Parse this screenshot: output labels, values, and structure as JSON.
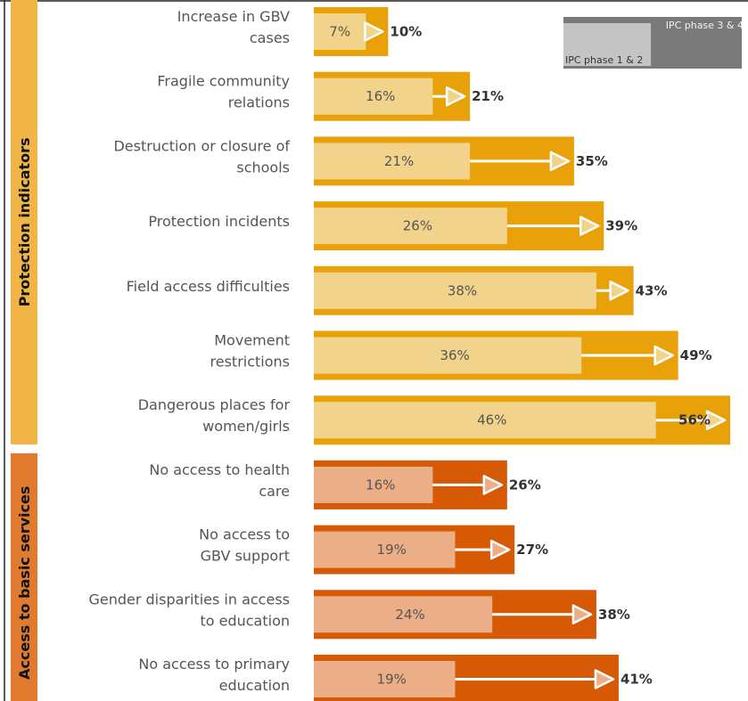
{
  "chart_data": {
    "type": "bar",
    "title": "",
    "xlabel": "",
    "ylabel": "",
    "xlim": [
      0,
      100
    ],
    "grid": false,
    "legend": {
      "placement": "top-right",
      "entries": [
        {
          "name": "IPC phase 1 & 2",
          "color": "#c4c4c4"
        },
        {
          "name": "IPC phase 3 & 4",
          "color": "#7a7a7a"
        }
      ]
    },
    "groups": [
      {
        "name": "Protection indicators",
        "color": "#f0b545",
        "bar_light": "#f2d38b",
        "bar_dark": "#e8a108",
        "items": [
          {
            "label": "Increase in GBV cases",
            "low_label": "7%",
            "high_label": "10%",
            "phase12": 7,
            "phase34": 10
          },
          {
            "label": "Fragile community relations",
            "low_label": "16%",
            "high_label": "21%",
            "phase12": 16,
            "phase34": 21
          },
          {
            "label": "Destruction or closure of schools",
            "low_label": "21%",
            "high_label": "35%",
            "phase12": 21,
            "phase34": 35
          },
          {
            "label": "Protection incidents",
            "low_label": "26%",
            "high_label": "39%",
            "phase12": 26,
            "phase34": 39
          },
          {
            "label": "Field access difficulties",
            "low_label": "38%",
            "high_label": "43%",
            "phase12": 38,
            "phase34": 43
          },
          {
            "label": "Movement restrictions",
            "low_label": "36%",
            "high_label": "49%",
            "phase12": 36,
            "phase34": 49
          },
          {
            "label": "Dangerous places for women/girls",
            "low_label": "46%",
            "high_label": "56%",
            "phase12": 46,
            "phase34": 56
          }
        ]
      },
      {
        "name": "Access to basic services",
        "color": "#e07a2e",
        "bar_light": "#ecae86",
        "bar_dark": "#d65a05",
        "items": [
          {
            "label": "No access to health care",
            "low_label": "16%",
            "high_label": "26%",
            "phase12": 16,
            "phase34": 26
          },
          {
            "label": "No access to GBV support",
            "low_label": "19%",
            "high_label": "27%",
            "phase12": 19,
            "phase34": 27
          },
          {
            "label": "Gender disparities in access to education",
            "low_label": "24%",
            "high_label": "38%",
            "phase12": 24,
            "phase34": 38
          },
          {
            "label": "No access to primary education",
            "low_label": "19%",
            "high_label": "41%",
            "phase12": 19,
            "phase34": 41
          }
        ]
      }
    ]
  }
}
